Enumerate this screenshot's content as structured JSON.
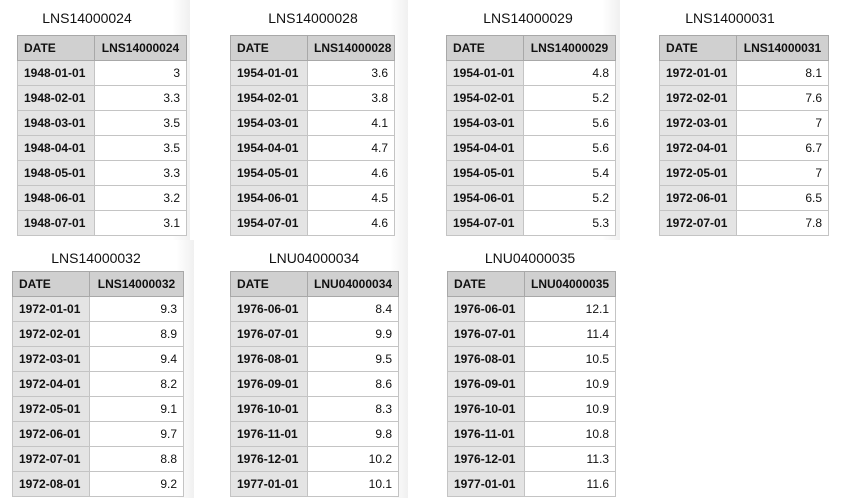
{
  "tables": [
    {
      "title": "LNS14000024",
      "headers": [
        "DATE",
        "LNS14000024"
      ],
      "rows": [
        [
          "1948-01-01",
          "3"
        ],
        [
          "1948-02-01",
          "3.3"
        ],
        [
          "1948-03-01",
          "3.5"
        ],
        [
          "1948-04-01",
          "3.5"
        ],
        [
          "1948-05-01",
          "3.3"
        ],
        [
          "1948-06-01",
          "3.2"
        ],
        [
          "1948-07-01",
          "3.1"
        ]
      ]
    },
    {
      "title": "LNS14000028",
      "headers": [
        "DATE",
        "LNS14000028"
      ],
      "rows": [
        [
          "1954-01-01",
          "3.6"
        ],
        [
          "1954-02-01",
          "3.8"
        ],
        [
          "1954-03-01",
          "4.1"
        ],
        [
          "1954-04-01",
          "4.7"
        ],
        [
          "1954-05-01",
          "4.6"
        ],
        [
          "1954-06-01",
          "4.5"
        ],
        [
          "1954-07-01",
          "4.6"
        ]
      ]
    },
    {
      "title": "LNS14000029",
      "headers": [
        "DATE",
        "LNS14000029"
      ],
      "rows": [
        [
          "1954-01-01",
          "4.8"
        ],
        [
          "1954-02-01",
          "5.2"
        ],
        [
          "1954-03-01",
          "5.6"
        ],
        [
          "1954-04-01",
          "5.6"
        ],
        [
          "1954-05-01",
          "5.4"
        ],
        [
          "1954-06-01",
          "5.2"
        ],
        [
          "1954-07-01",
          "5.3"
        ]
      ]
    },
    {
      "title": "LNS14000031",
      "headers": [
        "DATE",
        "LNS14000031"
      ],
      "rows": [
        [
          "1972-01-01",
          "8.1"
        ],
        [
          "1972-02-01",
          "7.6"
        ],
        [
          "1972-03-01",
          "7"
        ],
        [
          "1972-04-01",
          "6.7"
        ],
        [
          "1972-05-01",
          "7"
        ],
        [
          "1972-06-01",
          "6.5"
        ],
        [
          "1972-07-01",
          "7.8"
        ]
      ]
    },
    {
      "title": "LNS14000032",
      "headers": [
        "DATE",
        "LNS14000032"
      ],
      "rows": [
        [
          "1972-01-01",
          "9.3"
        ],
        [
          "1972-02-01",
          "8.9"
        ],
        [
          "1972-03-01",
          "9.4"
        ],
        [
          "1972-04-01",
          "8.2"
        ],
        [
          "1972-05-01",
          "9.1"
        ],
        [
          "1972-06-01",
          "9.7"
        ],
        [
          "1972-07-01",
          "8.8"
        ],
        [
          "1972-08-01",
          "9.2"
        ]
      ]
    },
    {
      "title": "LNU04000034",
      "headers": [
        "DATE",
        "LNU04000034"
      ],
      "rows": [
        [
          "1976-06-01",
          "8.4"
        ],
        [
          "1976-07-01",
          "9.9"
        ],
        [
          "1976-08-01",
          "9.5"
        ],
        [
          "1976-09-01",
          "8.6"
        ],
        [
          "1976-10-01",
          "8.3"
        ],
        [
          "1976-11-01",
          "9.8"
        ],
        [
          "1976-12-01",
          "10.2"
        ],
        [
          "1977-01-01",
          "10.1"
        ]
      ]
    },
    {
      "title": "LNU04000035",
      "headers": [
        "DATE",
        "LNU04000035"
      ],
      "rows": [
        [
          "1976-06-01",
          "12.1"
        ],
        [
          "1976-07-01",
          "11.4"
        ],
        [
          "1976-08-01",
          "10.5"
        ],
        [
          "1976-09-01",
          "10.9"
        ],
        [
          "1976-10-01",
          "10.9"
        ],
        [
          "1976-11-01",
          "10.8"
        ],
        [
          "1976-12-01",
          "11.3"
        ],
        [
          "1977-01-01",
          "11.6"
        ]
      ]
    }
  ]
}
